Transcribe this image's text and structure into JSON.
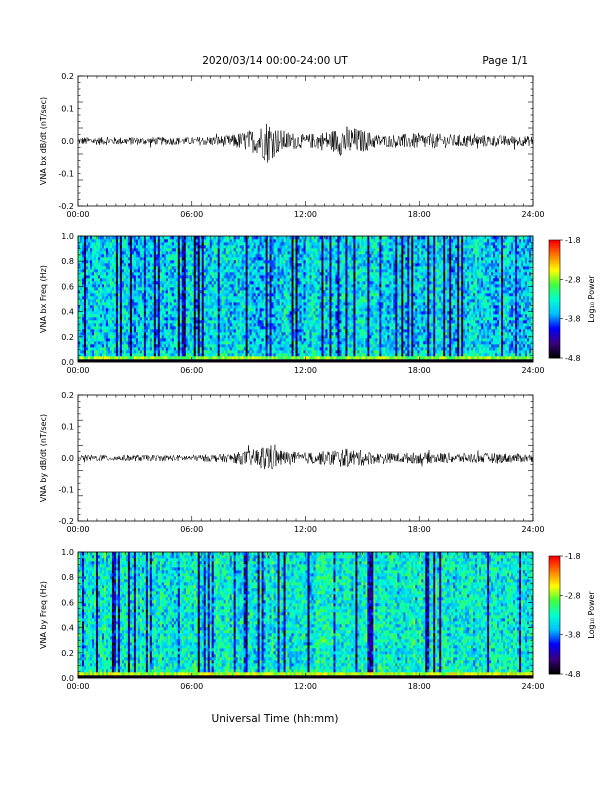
{
  "header": {
    "title": "2020/03/14  00:00-24:00 UT",
    "page": "Page 1/1"
  },
  "xaxis": {
    "label": "Universal Time (hh:mm)",
    "ticks": [
      "00:00",
      "06:00",
      "12:00",
      "18:00",
      "24:00"
    ],
    "range": [
      0,
      24
    ]
  },
  "colorbar": {
    "label": "Log₁₀ Power",
    "ticks": [
      "-1.8",
      "-2.8",
      "-3.8",
      "-4.8"
    ],
    "colors": [
      "#000000",
      "#3a0080",
      "#0000ff",
      "#00bfff",
      "#00ffd0",
      "#40ff40",
      "#ffff00",
      "#ff8000",
      "#ff0000"
    ]
  },
  "chart_data": [
    {
      "type": "line",
      "ylabel": "VNA bx dB/dt (nT/sec)",
      "ylim": [
        -0.2,
        0.2
      ],
      "yticks": [
        "0.2",
        "0.1",
        "0.0",
        "-0.1",
        "-0.2"
      ],
      "envelope": {
        "t": [
          0,
          2,
          4,
          6,
          8,
          9.5,
          10,
          10.5,
          11,
          12,
          13.5,
          14,
          15,
          16,
          18,
          20,
          22,
          24
        ],
        "amp": [
          0.012,
          0.012,
          0.012,
          0.012,
          0.018,
          0.04,
          0.07,
          0.04,
          0.03,
          0.02,
          0.035,
          0.05,
          0.035,
          0.018,
          0.025,
          0.02,
          0.018,
          0.015
        ]
      }
    },
    {
      "type": "heatmap",
      "ylabel": "VNA bx Freq (Hz)",
      "ylim": [
        0,
        1.0
      ],
      "yticks": [
        "1.0",
        "0.8",
        "0.6",
        "0.4",
        "0.2",
        "0.0"
      ],
      "zlim": [
        -4.8,
        -1.8
      ]
    },
    {
      "type": "line",
      "ylabel": "VNA by dB/dt (nT/sec)",
      "ylim": [
        -0.2,
        0.2
      ],
      "yticks": [
        "0.2",
        "0.1",
        "0.0",
        "-0.1",
        "-0.2"
      ],
      "envelope": {
        "t": [
          0,
          2,
          4,
          6,
          8,
          9.5,
          10,
          10.5,
          11,
          12,
          13.5,
          14,
          15,
          16,
          18,
          20,
          22,
          24
        ],
        "amp": [
          0.01,
          0.01,
          0.01,
          0.01,
          0.014,
          0.03,
          0.05,
          0.03,
          0.022,
          0.018,
          0.025,
          0.03,
          0.025,
          0.015,
          0.018,
          0.016,
          0.016,
          0.013
        ]
      }
    },
    {
      "type": "heatmap",
      "ylabel": "VNA by Freq (Hz)",
      "ylim": [
        0,
        1.0
      ],
      "yticks": [
        "1.0",
        "0.8",
        "0.6",
        "0.4",
        "0.2",
        "0.0"
      ],
      "zlim": [
        -4.8,
        -1.8
      ]
    }
  ]
}
